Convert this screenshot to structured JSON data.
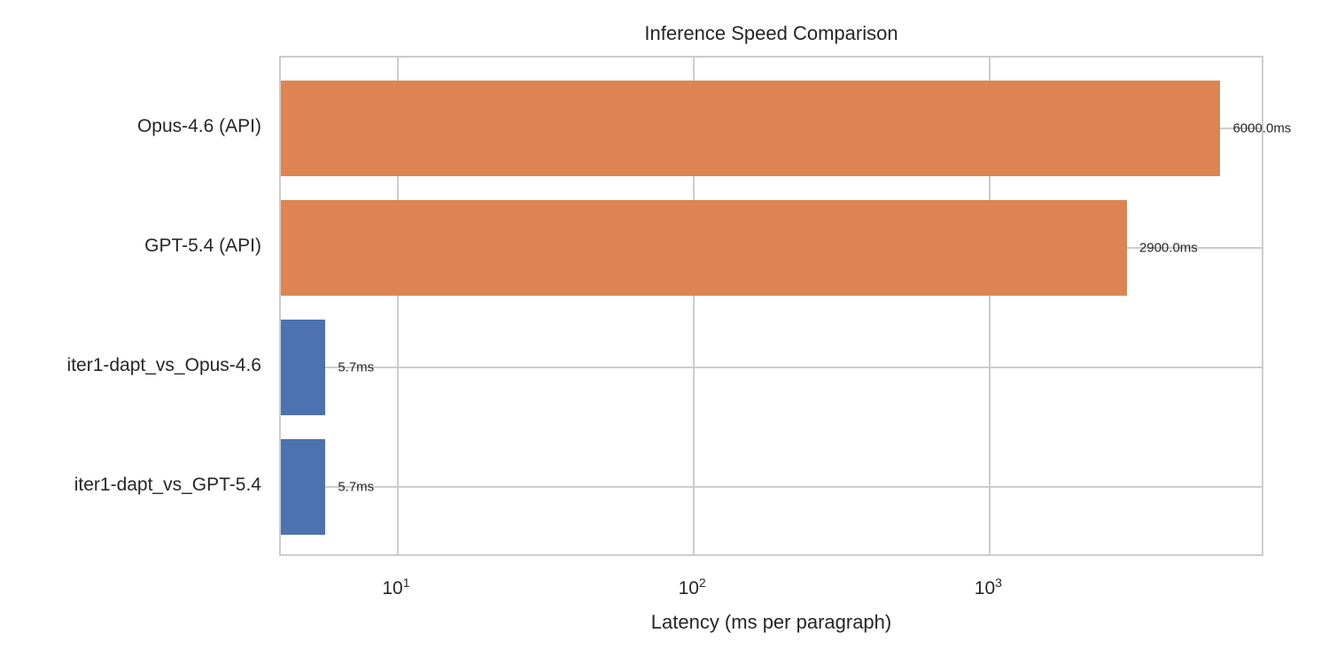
{
  "colors": {
    "orange": "#dd8452",
    "blue": "#4c72b0",
    "grid": "#cccccc",
    "spine": "#cccccc",
    "text": "#262626",
    "background": "#ffffff"
  },
  "chart_data": {
    "type": "bar",
    "orientation": "horizontal",
    "title": "Inference Speed Comparison",
    "xlabel": "Latency (ms per paragraph)",
    "ylabel": "",
    "x_scale": "log",
    "xlim": [
      4.03,
      8500
    ],
    "grid": true,
    "legend_position": "none",
    "x_ticks": [
      {
        "value": 10,
        "base": "10",
        "exponent": "1"
      },
      {
        "value": 100,
        "base": "10",
        "exponent": "2"
      },
      {
        "value": 1000,
        "base": "10",
        "exponent": "3"
      }
    ],
    "categories": [
      "Opus-4.6 (API)",
      "GPT-5.4 (API)",
      "iter1-dapt_vs_Opus-4.6",
      "iter1-dapt_vs_GPT-5.4"
    ],
    "series": [
      {
        "name": "Latency (ms per paragraph)",
        "values": [
          6000.0,
          2900.0,
          5.7,
          5.7
        ],
        "bar_labels": [
          "6000.0ms",
          "2900.0ms",
          "5.7ms",
          "5.7ms"
        ],
        "bar_colors": [
          "#dd8452",
          "#dd8452",
          "#4c72b0",
          "#4c72b0"
        ]
      }
    ]
  }
}
